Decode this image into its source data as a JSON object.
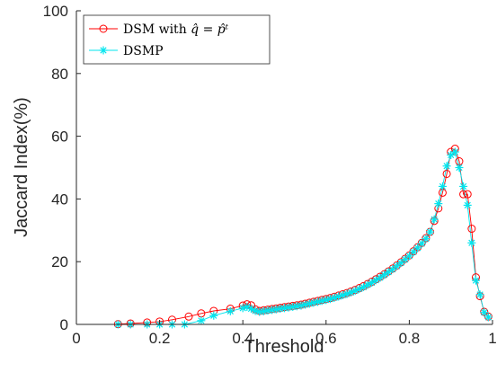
{
  "chart_data": {
    "type": "line",
    "xlabel": "Threshold",
    "ylabel": "Jaccard Index(%)",
    "xlim": [
      0,
      1
    ],
    "ylim": [
      0,
      100
    ],
    "xticks": [
      0,
      0.2,
      0.4,
      0.6,
      0.8,
      1
    ],
    "xtick_labels": [
      "0",
      "0.2",
      "0.4",
      "0.6",
      "0.8",
      "1"
    ],
    "yticks": [
      0,
      20,
      40,
      60,
      80,
      100
    ],
    "ytick_labels": [
      "0",
      "20",
      "40",
      "60",
      "80",
      "100"
    ],
    "grid": false,
    "legend_position": "top-left",
    "series": [
      {
        "name": "DSM with q̂ = p̂ᵗ",
        "legend_base": "DSM with ",
        "legend_math": "q̂ = p̂ᵗ",
        "color": "#ff0000",
        "marker": "circle",
        "x": [
          0.1,
          0.13,
          0.17,
          0.2,
          0.23,
          0.27,
          0.3,
          0.33,
          0.37,
          0.4,
          0.41,
          0.42,
          0.43,
          0.44,
          0.45,
          0.46,
          0.47,
          0.48,
          0.49,
          0.5,
          0.51,
          0.52,
          0.53,
          0.54,
          0.55,
          0.56,
          0.57,
          0.58,
          0.59,
          0.6,
          0.61,
          0.62,
          0.63,
          0.64,
          0.65,
          0.66,
          0.67,
          0.68,
          0.69,
          0.7,
          0.71,
          0.72,
          0.73,
          0.74,
          0.75,
          0.76,
          0.77,
          0.78,
          0.79,
          0.8,
          0.81,
          0.82,
          0.83,
          0.84,
          0.85,
          0.86,
          0.87,
          0.88,
          0.89,
          0.9,
          0.91,
          0.92,
          0.93,
          0.94,
          0.95,
          0.96,
          0.97,
          0.98,
          0.99
        ],
        "y": [
          0.1,
          0.3,
          0.6,
          0.9,
          1.5,
          2.5,
          3.5,
          4.3,
          5.0,
          6.0,
          6.4,
          6.1,
          4.8,
          4.3,
          4.5,
          4.7,
          4.9,
          5.1,
          5.3,
          5.5,
          5.7,
          5.9,
          6.1,
          6.3,
          6.6,
          6.9,
          7.2,
          7.5,
          7.8,
          8.1,
          8.4,
          8.8,
          9.2,
          9.6,
          10.0,
          10.5,
          11.0,
          11.6,
          12.2,
          12.9,
          13.6,
          14.4,
          15.2,
          16.0,
          16.9,
          17.8,
          18.8,
          19.8,
          20.9,
          22.0,
          23.3,
          24.6,
          26.0,
          27.5,
          29.5,
          33.0,
          37.0,
          42.0,
          48.0,
          55.0,
          56.0,
          52.0,
          41.5,
          41.5,
          30.5,
          15.0,
          9.0,
          4.0,
          2.5
        ]
      },
      {
        "name": "DSMP",
        "color": "#00e5ee",
        "marker": "asterisk",
        "x": [
          0.1,
          0.13,
          0.17,
          0.2,
          0.23,
          0.26,
          0.3,
          0.33,
          0.37,
          0.4,
          0.41,
          0.42,
          0.43,
          0.44,
          0.45,
          0.46,
          0.47,
          0.48,
          0.49,
          0.5,
          0.51,
          0.52,
          0.53,
          0.54,
          0.55,
          0.56,
          0.57,
          0.58,
          0.59,
          0.6,
          0.61,
          0.62,
          0.63,
          0.64,
          0.65,
          0.66,
          0.67,
          0.68,
          0.69,
          0.7,
          0.71,
          0.72,
          0.73,
          0.74,
          0.75,
          0.76,
          0.77,
          0.78,
          0.79,
          0.8,
          0.81,
          0.82,
          0.83,
          0.84,
          0.85,
          0.86,
          0.87,
          0.88,
          0.89,
          0.9,
          0.91,
          0.92,
          0.93,
          0.94,
          0.95,
          0.96,
          0.97,
          0.98,
          0.99
        ],
        "y": [
          0.0,
          0.0,
          0.0,
          0.0,
          0.0,
          0.0,
          1.2,
          2.8,
          4.2,
          5.2,
          5.6,
          5.0,
          4.3,
          4.0,
          4.2,
          4.4,
          4.6,
          4.8,
          5.0,
          5.2,
          5.4,
          5.6,
          5.8,
          6.0,
          6.3,
          6.6,
          6.9,
          7.2,
          7.5,
          7.8,
          8.1,
          8.5,
          8.9,
          9.3,
          9.7,
          10.2,
          10.7,
          11.3,
          11.9,
          12.6,
          13.3,
          14.1,
          14.9,
          15.8,
          16.7,
          17.6,
          18.6,
          19.6,
          20.7,
          21.8,
          23.1,
          24.4,
          25.8,
          27.3,
          29.5,
          33.5,
          38.5,
          44.0,
          50.5,
          54.0,
          55.0,
          50.0,
          44.0,
          38.0,
          26.0,
          14.0,
          9.5,
          3.8,
          2.3
        ]
      }
    ]
  }
}
